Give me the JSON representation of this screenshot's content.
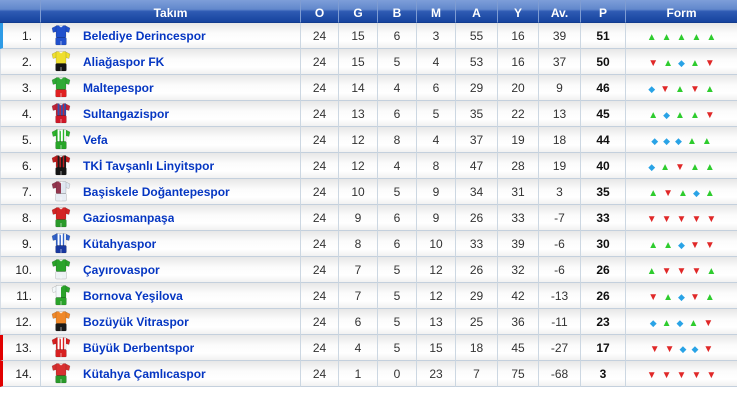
{
  "table": {
    "header": {
      "team_label": "Takım",
      "stat_labels": [
        "O",
        "G",
        "B",
        "M",
        "A",
        "Y",
        "Av.",
        "P",
        "Form"
      ]
    },
    "form_legend": {
      "W": {
        "name": "win-up-triangle-icon",
        "glyph": "▲",
        "color": "#2ecc2e"
      },
      "L": {
        "name": "loss-down-triangle-icon",
        "glyph": "▼",
        "color": "#e02828"
      },
      "D": {
        "name": "draw-diamond-icon",
        "glyph": "◆",
        "color": "#29a3e6"
      }
    },
    "colors": {
      "header_gradient_top": "#7d9ed9",
      "header_gradient_bottom": "#16439e",
      "team_text": "#0536c2",
      "promotion_marker": "#2e9be6",
      "relegation_marker": "#e10000"
    },
    "rows": [
      {
        "rank": "1.",
        "team": "Belediye Derincespor",
        "o": "24",
        "g": "15",
        "b": "6",
        "m": "3",
        "a": "55",
        "y": "16",
        "av": "39",
        "p": "51",
        "form": [
          "W",
          "W",
          "W",
          "W",
          "W"
        ],
        "marker": "promotion",
        "jersey": {
          "pattern": "solid",
          "c1": "#2050cc",
          "c2": "#ffffff",
          "shorts": "#2050cc"
        }
      },
      {
        "rank": "2.",
        "team": "Aliağaspor FK",
        "o": "24",
        "g": "15",
        "b": "5",
        "m": "4",
        "a": "53",
        "y": "16",
        "av": "37",
        "p": "50",
        "form": [
          "L",
          "W",
          "D",
          "W",
          "L"
        ],
        "marker": "none",
        "jersey": {
          "pattern": "solid",
          "c1": "#efdf2e",
          "c2": "#111111",
          "shorts": "#151515"
        }
      },
      {
        "rank": "3.",
        "team": "Maltepespor",
        "o": "24",
        "g": "14",
        "b": "4",
        "m": "6",
        "a": "29",
        "y": "20",
        "av": "9",
        "p": "46",
        "form": [
          "D",
          "L",
          "W",
          "L",
          "W"
        ],
        "marker": "none",
        "jersey": {
          "pattern": "solid",
          "c1": "#2faa35",
          "c2": "#ffffff",
          "shorts": "#e02020"
        }
      },
      {
        "rank": "4.",
        "team": "Sultangazispor",
        "o": "24",
        "g": "13",
        "b": "6",
        "m": "5",
        "a": "35",
        "y": "22",
        "av": "13",
        "p": "45",
        "form": [
          "W",
          "D",
          "W",
          "W",
          "L"
        ],
        "marker": "none",
        "jersey": {
          "pattern": "stripes",
          "c1": "#c22438",
          "c2": "#3450ae",
          "shorts": "#d01828"
        }
      },
      {
        "rank": "5.",
        "team": "Vefa",
        "o": "24",
        "g": "12",
        "b": "8",
        "m": "4",
        "a": "37",
        "y": "19",
        "av": "18",
        "p": "44",
        "form": [
          "D",
          "D",
          "D",
          "W",
          "W"
        ],
        "marker": "none",
        "jersey": {
          "pattern": "stripes",
          "c1": "#2cb42c",
          "c2": "#ffffff",
          "shorts": "#27a527"
        }
      },
      {
        "rank": "6.",
        "team": "TKİ Tavşanlı Linyitspor",
        "o": "24",
        "g": "12",
        "b": "4",
        "m": "8",
        "a": "47",
        "y": "28",
        "av": "19",
        "p": "40",
        "form": [
          "D",
          "W",
          "L",
          "W",
          "W"
        ],
        "marker": "none",
        "jersey": {
          "pattern": "stripes",
          "c1": "#c01c1c",
          "c2": "#1c1c1c",
          "shorts": "#141414"
        }
      },
      {
        "rank": "7.",
        "team": "Başiskele Doğantepespor",
        "o": "24",
        "g": "10",
        "b": "5",
        "m": "9",
        "a": "34",
        "y": "31",
        "av": "3",
        "p": "35",
        "form": [
          "W",
          "L",
          "W",
          "D",
          "W"
        ],
        "marker": "none",
        "jersey": {
          "pattern": "half",
          "c1": "#93364e",
          "c2": "#dfe7f0",
          "shorts": "#e8edf4"
        }
      },
      {
        "rank": "8.",
        "team": "Gaziosmanpaşa",
        "o": "24",
        "g": "9",
        "b": "6",
        "m": "9",
        "a": "26",
        "y": "33",
        "av": "-7",
        "p": "33",
        "form": [
          "L",
          "L",
          "L",
          "L",
          "L"
        ],
        "marker": "none",
        "jersey": {
          "pattern": "solid",
          "c1": "#d42424",
          "c2": "#ffffff",
          "shorts": "#2a9a2a"
        }
      },
      {
        "rank": "9.",
        "team": "Kütahyaspor",
        "o": "24",
        "g": "8",
        "b": "6",
        "m": "10",
        "a": "33",
        "y": "39",
        "av": "-6",
        "p": "30",
        "form": [
          "W",
          "W",
          "D",
          "L",
          "L"
        ],
        "marker": "none",
        "jersey": {
          "pattern": "stripes",
          "c1": "#3262ca",
          "c2": "#ffffff",
          "shorts": "#1838a0"
        }
      },
      {
        "rank": "10.",
        "team": "Çayırovaspor",
        "o": "24",
        "g": "7",
        "b": "5",
        "m": "12",
        "a": "26",
        "y": "32",
        "av": "-6",
        "p": "26",
        "form": [
          "W",
          "L",
          "L",
          "L",
          "W"
        ],
        "marker": "none",
        "jersey": {
          "pattern": "solid",
          "c1": "#2aa32a",
          "c2": "#ffffff",
          "shorts": "#eef2f5"
        }
      },
      {
        "rank": "11.",
        "team": "Bornova Yeşilova",
        "o": "24",
        "g": "7",
        "b": "5",
        "m": "12",
        "a": "29",
        "y": "42",
        "av": "-13",
        "p": "26",
        "form": [
          "L",
          "W",
          "D",
          "L",
          "W"
        ],
        "marker": "none",
        "jersey": {
          "pattern": "half",
          "c1": "#f4f8fa",
          "c2": "#2aa32a",
          "shorts": "#2aa32a"
        }
      },
      {
        "rank": "12.",
        "team": "Bozüyük Vitraspor",
        "o": "24",
        "g": "6",
        "b": "5",
        "m": "13",
        "a": "25",
        "y": "36",
        "av": "-11",
        "p": "23",
        "form": [
          "D",
          "W",
          "D",
          "W",
          "L"
        ],
        "marker": "none",
        "jersey": {
          "pattern": "solid",
          "c1": "#f08828",
          "c2": "#111111",
          "shorts": "#1a1a1a"
        }
      },
      {
        "rank": "13.",
        "team": "Büyük Derbentspor",
        "o": "24",
        "g": "4",
        "b": "5",
        "m": "15",
        "a": "18",
        "y": "45",
        "av": "-27",
        "p": "17",
        "form": [
          "L",
          "L",
          "D",
          "D",
          "L"
        ],
        "marker": "relegation",
        "jersey": {
          "pattern": "stripes",
          "c1": "#d82020",
          "c2": "#ffffff",
          "shorts": "#d82020"
        }
      },
      {
        "rank": "14.",
        "team": "Kütahya Çamlıcaspor",
        "o": "24",
        "g": "1",
        "b": "0",
        "m": "23",
        "a": "7",
        "y": "75",
        "av": "-68",
        "p": "3",
        "form": [
          "L",
          "L",
          "L",
          "L",
          "L"
        ],
        "marker": "relegation",
        "jersey": {
          "pattern": "solid",
          "c1": "#d83030",
          "c2": "#ffffff",
          "shorts": "#2a9a2a"
        }
      }
    ]
  }
}
